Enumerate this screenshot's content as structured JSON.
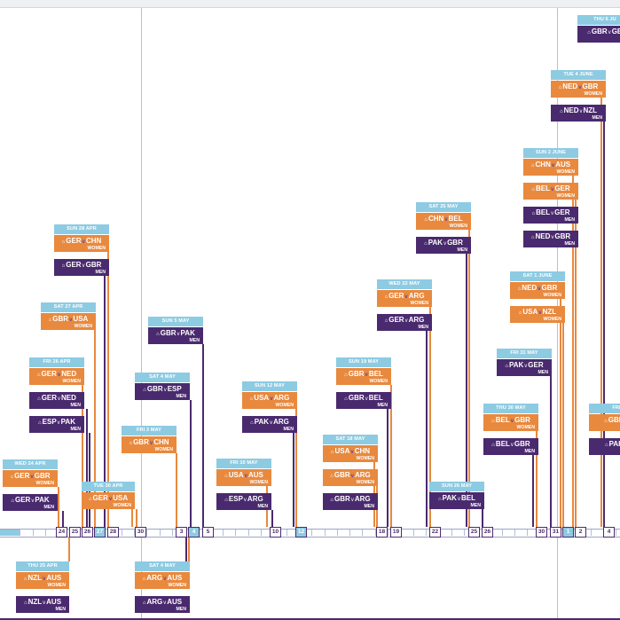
{
  "colors": {
    "women": "#e8893e",
    "men": "#4a2a6e",
    "header": "#8dcbe2",
    "guide": "#8fd0e6"
  },
  "icons": {
    "home": "home-icon"
  },
  "timeline_days": [
    {
      "label": "24"
    },
    {
      "label": "25"
    },
    {
      "label": "26"
    },
    {
      "label": "27",
      "filled": true
    },
    {
      "label": "28"
    },
    {
      "label": "30"
    },
    {
      "label": "3"
    },
    {
      "label": "4",
      "filled": true
    },
    {
      "label": "5"
    },
    {
      "label": "10"
    },
    {
      "label": "12",
      "filled": true
    },
    {
      "label": "18"
    },
    {
      "label": "19"
    },
    {
      "label": "22"
    },
    {
      "label": "25"
    },
    {
      "label": "26"
    },
    {
      "label": "30"
    },
    {
      "label": "31"
    },
    {
      "label": "1",
      "filled": true
    },
    {
      "label": "2"
    },
    {
      "label": "4"
    }
  ],
  "fixtures": [
    {
      "date": "WED 24 APR",
      "matches": [
        {
          "home": "GER",
          "away": "GBR",
          "cat": "WOMEN",
          "side": "women"
        },
        {
          "home": "GER",
          "away": "PAK",
          "cat": "MEN",
          "side": "men"
        }
      ]
    },
    {
      "date": "THU 25 APR",
      "matches": [
        {
          "home": "NZL",
          "away": "AUS",
          "cat": "WOMEN",
          "side": "women"
        },
        {
          "home": "NZL",
          "away": "AUS",
          "cat": "MEN",
          "side": "men"
        }
      ]
    },
    {
      "date": "FRI 26 APR",
      "matches": [
        {
          "home": "GER",
          "away": "NED",
          "cat": "WOMEN",
          "side": "women"
        },
        {
          "home": "GER",
          "away": "NED",
          "cat": "MEN",
          "side": "men"
        },
        {
          "home": "ESP",
          "away": "PAK",
          "cat": "MEN",
          "side": "men"
        }
      ]
    },
    {
      "date": "SAT 27 APR",
      "matches": [
        {
          "home": "GBR",
          "away": "USA",
          "cat": "WOMEN",
          "side": "women"
        }
      ]
    },
    {
      "date": "SUN 28 APR",
      "matches": [
        {
          "home": "GER",
          "away": "CHN",
          "cat": "WOMEN",
          "side": "women"
        },
        {
          "home": "GER",
          "away": "GBR",
          "cat": "MEN",
          "side": "men"
        }
      ]
    },
    {
      "date": "TUE 30 APR",
      "matches": [
        {
          "home": "GER",
          "away": "USA",
          "cat": "WOMEN",
          "side": "women"
        }
      ]
    },
    {
      "date": "FRI 3 MAY",
      "matches": [
        {
          "home": "GBR",
          "away": "CHN",
          "cat": "WOMEN",
          "side": "women"
        }
      ]
    },
    {
      "date": "SAT 4 MAY",
      "matches": [
        {
          "home": "GBR",
          "away": "ESP",
          "cat": "MEN",
          "side": "men"
        }
      ]
    },
    {
      "date": "SAT 4 MAY",
      "matches": [
        {
          "home": "ARG",
          "away": "AUS",
          "cat": "WOMEN",
          "side": "women"
        },
        {
          "home": "ARG",
          "away": "AUS",
          "cat": "MEN",
          "side": "men"
        }
      ]
    },
    {
      "date": "SUN 5 MAY",
      "matches": [
        {
          "home": "GBR",
          "away": "PAK",
          "cat": "MEN",
          "side": "men"
        }
      ]
    },
    {
      "date": "FRI 10 MAY",
      "matches": [
        {
          "home": "USA",
          "away": "AUS",
          "cat": "WOMEN",
          "side": "women"
        },
        {
          "home": "ESP",
          "away": "ARG",
          "cat": "MEN",
          "side": "men"
        }
      ]
    },
    {
      "date": "SUN 12 MAY",
      "matches": [
        {
          "home": "USA",
          "away": "ARG",
          "cat": "WOMEN",
          "side": "women"
        },
        {
          "home": "PAK",
          "away": "ARG",
          "cat": "MEN",
          "side": "men"
        }
      ]
    },
    {
      "date": "SAT 18 MAY",
      "matches": [
        {
          "home": "USA",
          "away": "CHN",
          "cat": "WOMEN",
          "side": "women"
        },
        {
          "home": "GBR",
          "away": "ARG",
          "cat": "WOMEN",
          "side": "women"
        },
        {
          "home": "GBR",
          "away": "ARG",
          "cat": "MEN",
          "side": "men"
        }
      ]
    },
    {
      "date": "SUN 19 MAY",
      "matches": [
        {
          "home": "GBR",
          "away": "BEL",
          "cat": "WOMEN",
          "side": "women"
        },
        {
          "home": "GBR",
          "away": "BEL",
          "cat": "MEN",
          "side": "men"
        }
      ]
    },
    {
      "date": "WED 22 MAY",
      "matches": [
        {
          "home": "GER",
          "away": "ARG",
          "cat": "WOMEN",
          "side": "women"
        },
        {
          "home": "GER",
          "away": "ARG",
          "cat": "MEN",
          "side": "men"
        }
      ]
    },
    {
      "date": "SAT 25 MAY",
      "matches": [
        {
          "home": "CHN",
          "away": "BEL",
          "cat": "WOMEN",
          "side": "women"
        },
        {
          "home": "PAK",
          "away": "GBR",
          "cat": "MEN",
          "side": "men"
        }
      ]
    },
    {
      "date": "SUN 26 MAY",
      "matches": [
        {
          "home": "PAK",
          "away": "BEL",
          "cat": "MEN",
          "side": "men"
        }
      ]
    },
    {
      "date": "THU 30 MAY",
      "matches": [
        {
          "home": "BEL",
          "away": "GBR",
          "cat": "WOMEN",
          "side": "women"
        },
        {
          "home": "BEL",
          "away": "GBR",
          "cat": "MEN",
          "side": "men"
        }
      ]
    },
    {
      "date": "FRI 31 MAY",
      "matches": [
        {
          "home": "PAK",
          "away": "GER",
          "cat": "MEN",
          "side": "men"
        }
      ]
    },
    {
      "date": "SAT 1 JUNE",
      "matches": [
        {
          "home": "NED",
          "away": "GBR",
          "cat": "WOMEN",
          "side": "women"
        },
        {
          "home": "USA",
          "away": "NZL",
          "cat": "WOMEN",
          "side": "women"
        }
      ]
    },
    {
      "date": "SUN 2 JUNE",
      "matches": [
        {
          "home": "CHN",
          "away": "AUS",
          "cat": "WOMEN",
          "side": "women"
        },
        {
          "home": "BEL",
          "away": "GER",
          "cat": "WOMEN",
          "side": "women"
        },
        {
          "home": "BEL",
          "away": "GER",
          "cat": "MEN",
          "side": "men"
        },
        {
          "home": "NED",
          "away": "GBR",
          "cat": "MEN",
          "side": "men"
        }
      ]
    },
    {
      "date": "TUE 4 JUNE",
      "matches": [
        {
          "home": "NED",
          "away": "GBR",
          "cat": "WOMEN",
          "side": "women"
        },
        {
          "home": "NED",
          "away": "NZL",
          "cat": "MEN",
          "side": "men"
        }
      ]
    },
    {
      "date": "THU 6 JU",
      "matches": [
        {
          "home": "GBR",
          "away": "GB",
          "cat": "",
          "side": "men"
        }
      ]
    },
    {
      "date": "FRI",
      "matches": [
        {
          "home": "GBR",
          "away": "",
          "cat": "",
          "side": "women"
        },
        {
          "home": "PAK",
          "away": "",
          "cat": "",
          "side": "men"
        }
      ]
    }
  ]
}
